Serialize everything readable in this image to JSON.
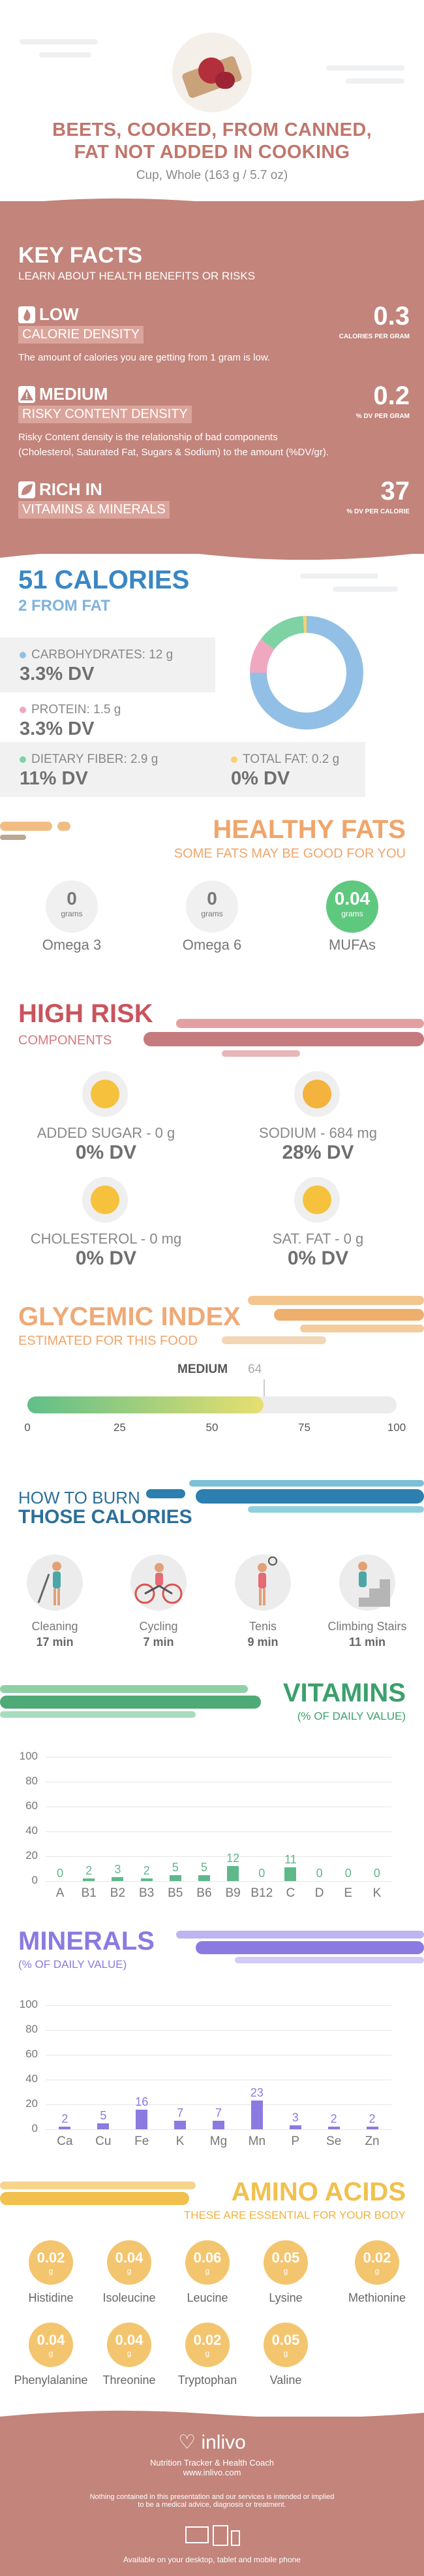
{
  "header": {
    "title_line1": "BEETS, COOKED, FROM CANNED,",
    "title_line2": "FAT NOT ADDED IN COOKING",
    "serving": "Cup, Whole (163 g / 5.7 oz)"
  },
  "key_facts": {
    "title": "KEY FACTS",
    "subtitle": "LEARN ABOUT HEALTH BENEFITS OR RISKS",
    "calorie_density": {
      "level": "LOW",
      "label": "CALORIE DENSITY",
      "value": "0.3",
      "unit": "CALORIES PER GRAM",
      "desc": "The amount of calories you are getting from 1 gram is low."
    },
    "risky_density": {
      "level": "MEDIUM",
      "label": "RISKY CONTENT DENSITY",
      "value": "0.2",
      "unit": "% DV PER GRAM",
      "desc1": "Risky Content density is the relationship of bad components",
      "desc2": "(Cholesterol, Saturated Fat, Sugars & Sodium) to the amount (%DV/gr)."
    },
    "vitamins": {
      "level": "RICH  IN",
      "label": "VITAMINS & MINERALS",
      "value": "37",
      "unit": "% DV PER CALORIE"
    }
  },
  "calories": {
    "title": "51 CALORIES",
    "from_fat": "2 FROM FAT",
    "carbs": {
      "label": "CARBOHYDRATES: 12 g",
      "dv": "3.3% DV",
      "color": "#92bfe5"
    },
    "protein": {
      "label": "PROTEIN: 1.5 g",
      "dv": "3.3% DV",
      "color": "#f0a7c0"
    },
    "fiber": {
      "label": "DIETARY FIBER: 2.9 g",
      "dv": "11% DV",
      "color": "#7ed2a4"
    },
    "fat": {
      "label": "TOTAL FAT: 0.2 g",
      "dv": "0% DV",
      "color": "#f5d36e"
    }
  },
  "chart_data": [
    {
      "type": "pie",
      "categories": [
        "Carbohydrates",
        "Protein",
        "Dietary Fiber",
        "Total Fat"
      ],
      "values": [
        75,
        10,
        14,
        1
      ],
      "colors": [
        "#92bfe5",
        "#f0a7c0",
        "#7ed2a4",
        "#f5d36e"
      ]
    },
    {
      "type": "bar",
      "title": "VITAMINS",
      "subtitle": "(% OF DAILY VALUE)",
      "categories": [
        "A",
        "B1",
        "B2",
        "B3",
        "B5",
        "B6",
        "B9",
        "B12",
        "C",
        "D",
        "E",
        "K"
      ],
      "values": [
        0,
        2,
        3,
        2,
        5,
        5,
        12,
        0,
        11,
        0,
        0,
        0
      ],
      "labels": [
        "0",
        "2",
        "3",
        "2",
        "5",
        "5",
        "12",
        "0",
        "11",
        "0",
        "0",
        "0"
      ],
      "ylim": [
        0,
        100
      ],
      "yticks": [
        "0",
        "20",
        "40",
        "60",
        "80",
        "100"
      ],
      "color": "#5fb88a"
    },
    {
      "type": "bar",
      "title": "MINERALS",
      "subtitle": "(% OF DAILY VALUE)",
      "categories": [
        "Ca",
        "Cu",
        "Fe",
        "K",
        "Mg",
        "Mn",
        "P",
        "Se",
        "Zn"
      ],
      "values": [
        2,
        5,
        16,
        7,
        7,
        23,
        3,
        2,
        2
      ],
      "labels": [
        "2",
        "5",
        "16",
        "7",
        "7",
        "23",
        "3",
        "2",
        "2"
      ],
      "ylim": [
        0,
        100
      ],
      "yticks": [
        "0",
        "20",
        "40",
        "60",
        "80",
        "100"
      ],
      "color": "#8b7ae0"
    }
  ],
  "healthy_fats": {
    "title": "HEALTHY FATS",
    "subtitle": "SOME FATS MAY BE GOOD FOR YOU",
    "items": [
      {
        "value": "0",
        "unit": "grams",
        "name": "Omega 3"
      },
      {
        "value": "0",
        "unit": "grams",
        "name": "Omega 6"
      },
      {
        "value": "0.04",
        "unit": "grams",
        "name": "MUFAs"
      }
    ]
  },
  "high_risk": {
    "title": "HIGH RISK",
    "subtitle": "COMPONENTS",
    "items": [
      {
        "label": "ADDED SUGAR - 0 g",
        "dv": "0% DV"
      },
      {
        "label": "SODIUM - 684 mg",
        "dv": "28% DV"
      },
      {
        "label": "CHOLESTEROL - 0 mg",
        "dv": "0% DV"
      },
      {
        "label": "SAT. FAT - 0 g",
        "dv": "0% DV"
      }
    ]
  },
  "glycemic": {
    "title": "GLYCEMIC INDEX",
    "subtitle": "ESTIMATED FOR THIS FOOD",
    "level": "MEDIUM",
    "value": "64",
    "fraction": 0.64,
    "ticks": [
      "0",
      "25",
      "50",
      "75",
      "100"
    ]
  },
  "burn": {
    "title1": "HOW TO BURN",
    "title2": "THOSE CALORIES",
    "items": [
      {
        "name": "Cleaning",
        "min": "17 min"
      },
      {
        "name": "Cycling",
        "min": "7 min"
      },
      {
        "name": "Tenis",
        "min": "9 min"
      },
      {
        "name": "Climbing Stairs",
        "min": "11 min"
      }
    ]
  },
  "vitamins": {
    "title": "VITAMINS",
    "subtitle": "(% OF DAILY VALUE)"
  },
  "minerals": {
    "title": "MINERALS",
    "subtitle": "(% OF DAILY VALUE)"
  },
  "amino": {
    "title": "AMINO ACIDS",
    "subtitle": "THESE ARE ESSENTIAL FOR YOUR BODY",
    "unit": "g",
    "items": [
      {
        "value": "0.02",
        "name": "Histidine"
      },
      {
        "value": "0.04",
        "name": "Isoleucine"
      },
      {
        "value": "0.06",
        "name": "Leucine"
      },
      {
        "value": "0.05",
        "name": "Lysine"
      },
      {
        "value": "0.02",
        "name": "Methionine"
      },
      {
        "value": "0.04",
        "name": "Phenylalanine"
      },
      {
        "value": "0.04",
        "name": "Threonine"
      },
      {
        "value": "0.02",
        "name": "Tryptophan"
      },
      {
        "value": "0.05",
        "name": "Valine"
      }
    ]
  },
  "footer": {
    "brand": "inlivo",
    "tagline": "Nutrition Tracker & Health Coach",
    "url": "www.inlivo.com",
    "disclaimer1": "Nothing contained in this presentation and our services is intended or implied",
    "disclaimer2": "to be a medical advice, diagnosis or treatment.",
    "available": "Available on your desktop, tablet and mobile phone"
  }
}
